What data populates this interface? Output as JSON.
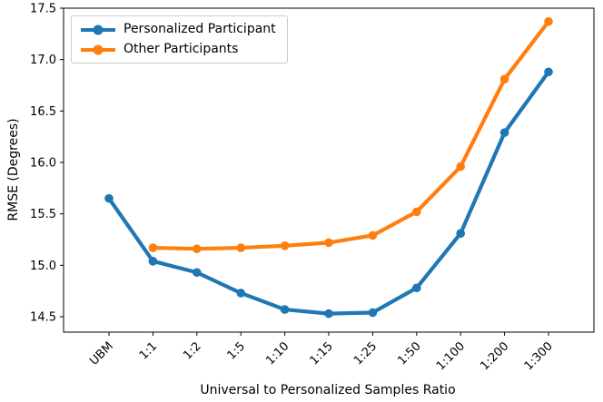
{
  "chart_data": {
    "type": "line",
    "title": "",
    "xlabel": "Universal to Personalized Samples Ratio",
    "ylabel": "RMSE (Degrees)",
    "categories": [
      "UBM",
      "1:1",
      "1:2",
      "1:5",
      "1:10",
      "1:15",
      "1:25",
      "1:50",
      "1:100",
      "1:200",
      "1:300"
    ],
    "series": [
      {
        "name": "Personalized Participant",
        "color": "#1f77b4",
        "values": [
          15.65,
          15.04,
          14.93,
          14.73,
          14.57,
          14.53,
          14.54,
          14.78,
          15.31,
          16.29,
          16.88
        ]
      },
      {
        "name": "Other Participants",
        "color": "#ff7f0e",
        "values": [
          null,
          15.17,
          15.16,
          15.17,
          15.19,
          15.22,
          15.29,
          15.52,
          15.96,
          16.81,
          17.37
        ]
      }
    ],
    "ylim": [
      14.35,
      17.5
    ],
    "yticks": [
      14.5,
      15.0,
      15.5,
      16.0,
      16.5,
      17.0,
      17.5
    ],
    "x_tick_rotation": 45,
    "grid": false,
    "legend_position": "upper left",
    "axis_color": "#000000"
  }
}
